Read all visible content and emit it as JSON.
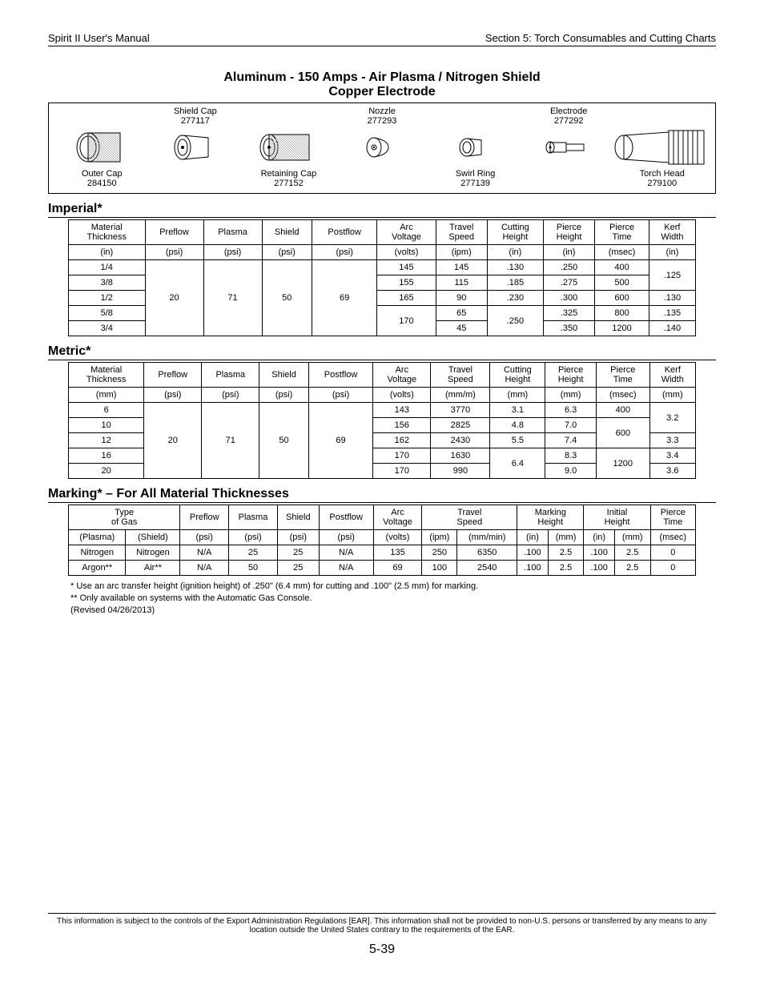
{
  "header": {
    "left": "Spirit II User's Manual",
    "right": "Section 5: Torch Consumables and Cutting Charts"
  },
  "title": {
    "line1": "Aluminum - 150 Amps - Air Plasma / Nitrogen Shield",
    "line2": "Copper Electrode"
  },
  "parts": {
    "top": [
      {
        "name": "Shield Cap",
        "num": "277117"
      },
      {
        "name": "Nozzle",
        "num": "277293"
      },
      {
        "name": "Electrode",
        "num": "277292"
      }
    ],
    "bottom": [
      {
        "name": "Outer Cap",
        "num": "284150"
      },
      {
        "name": "Retaining Cap",
        "num": "277152"
      },
      {
        "name": "Swirl Ring",
        "num": "277139"
      },
      {
        "name": "Torch Head",
        "num": "279100"
      }
    ]
  },
  "imperial": {
    "heading": "Imperial*",
    "columns": [
      "Material Thickness",
      "Preflow",
      "Plasma",
      "Shield",
      "Postflow",
      "Arc Voltage",
      "Travel Speed",
      "Cutting Height",
      "Pierce Height",
      "Pierce Time",
      "Kerf Width"
    ],
    "units": [
      "(in)",
      "(psi)",
      "(psi)",
      "(psi)",
      "(psi)",
      "(volts)",
      "(ipm)",
      "(in)",
      "(in)",
      "(msec)",
      "(in)"
    ],
    "shared": {
      "preflow": "20",
      "plasma": "71",
      "shield": "50",
      "postflow": "69"
    },
    "rows": [
      {
        "t": "1/4",
        "av": "145",
        "ts": "145",
        "ch": ".130",
        "ph": ".250",
        "pt": "400",
        "kw": ".125",
        "kw_span": 2
      },
      {
        "t": "3/8",
        "av": "155",
        "ts": "115",
        "ch": ".185",
        "ph": ".275",
        "pt": "500"
      },
      {
        "t": "1/2",
        "av": "165",
        "ts": "90",
        "ch": ".230",
        "ph": ".300",
        "pt": "600",
        "kw": ".130"
      },
      {
        "t": "5/8",
        "av": "170",
        "av_span": 2,
        "ts": "65",
        "ch": ".250",
        "ch_span": 2,
        "ph": ".325",
        "pt": "800",
        "kw": ".135"
      },
      {
        "t": "3/4",
        "ts": "45",
        "ph": ".350",
        "pt": "1200",
        "kw": ".140"
      }
    ]
  },
  "metric": {
    "heading": "Metric*",
    "columns": [
      "Material Thickness",
      "Preflow",
      "Plasma",
      "Shield",
      "Postflow",
      "Arc Voltage",
      "Travel Speed",
      "Cutting Height",
      "Pierce Height",
      "Pierce Time",
      "Kerf Width"
    ],
    "units": [
      "(mm)",
      "(psi)",
      "(psi)",
      "(psi)",
      "(psi)",
      "(volts)",
      "(mm/m)",
      "(mm)",
      "(mm)",
      "(msec)",
      "(mm)"
    ],
    "shared": {
      "preflow": "20",
      "plasma": "71",
      "shield": "50",
      "postflow": "69"
    },
    "rows": [
      {
        "t": "6",
        "av": "143",
        "ts": "3770",
        "ch": "3.1",
        "ph": "6.3",
        "pt": "400",
        "kw": "3.2",
        "kw_span": 2
      },
      {
        "t": "10",
        "av": "156",
        "ts": "2825",
        "ch": "4.8",
        "ph": "7.0",
        "pt": "600",
        "pt_span": 2
      },
      {
        "t": "12",
        "av": "162",
        "ts": "2430",
        "ch": "5.5",
        "ph": "7.4",
        "kw": "3.3"
      },
      {
        "t": "16",
        "av": "170",
        "ts": "1630",
        "ch": "6.4",
        "ch_span": 2,
        "ph": "8.3",
        "pt": "1200",
        "pt_span": 2,
        "kw": "3.4"
      },
      {
        "t": "20",
        "av": "170",
        "ts": "990",
        "ph": "9.0",
        "kw": "3.6"
      }
    ]
  },
  "marking": {
    "heading": "Marking* – For All Material Thicknesses",
    "col_top": [
      "Type of Gas",
      "Preflow",
      "Plasma",
      "Shield",
      "Postflow",
      "Arc Voltage",
      "Travel Speed",
      "Marking Height",
      "Initial Height",
      "Pierce Time"
    ],
    "col_sub": [
      "(Plasma)",
      "(Shield)",
      "(psi)",
      "(psi)",
      "(psi)",
      "(psi)",
      "(volts)",
      "(ipm)",
      "(mm/min)",
      "(in)",
      "(mm)",
      "(in)",
      "(mm)",
      "(msec)"
    ],
    "rows": [
      [
        "Nitrogen",
        "Nitrogen",
        "N/A",
        "25",
        "25",
        "N/A",
        "135",
        "250",
        "6350",
        ".100",
        "2.5",
        ".100",
        "2.5",
        "0"
      ],
      [
        "Argon**",
        "Air**",
        "N/A",
        "50",
        "25",
        "N/A",
        "69",
        "100",
        "2540",
        ".100",
        "2.5",
        ".100",
        "2.5",
        "0"
      ]
    ]
  },
  "notes": {
    "l1": "* Use an arc transfer height (ignition height) of .250\" (6.4 mm) for cutting and .100\" (2.5 mm) for marking.",
    "l2": "** Only available on systems with the Automatic Gas Console.",
    "l3": "(Revised 04/26/2013)"
  },
  "footer": {
    "text": "This information is subject to the controls of the Export Administration Regulations [EAR].  This information shall not be provided to non-U.S. persons or transferred by any means to any location outside the United States contrary to the requirements of the EAR.",
    "page": "5-39"
  }
}
